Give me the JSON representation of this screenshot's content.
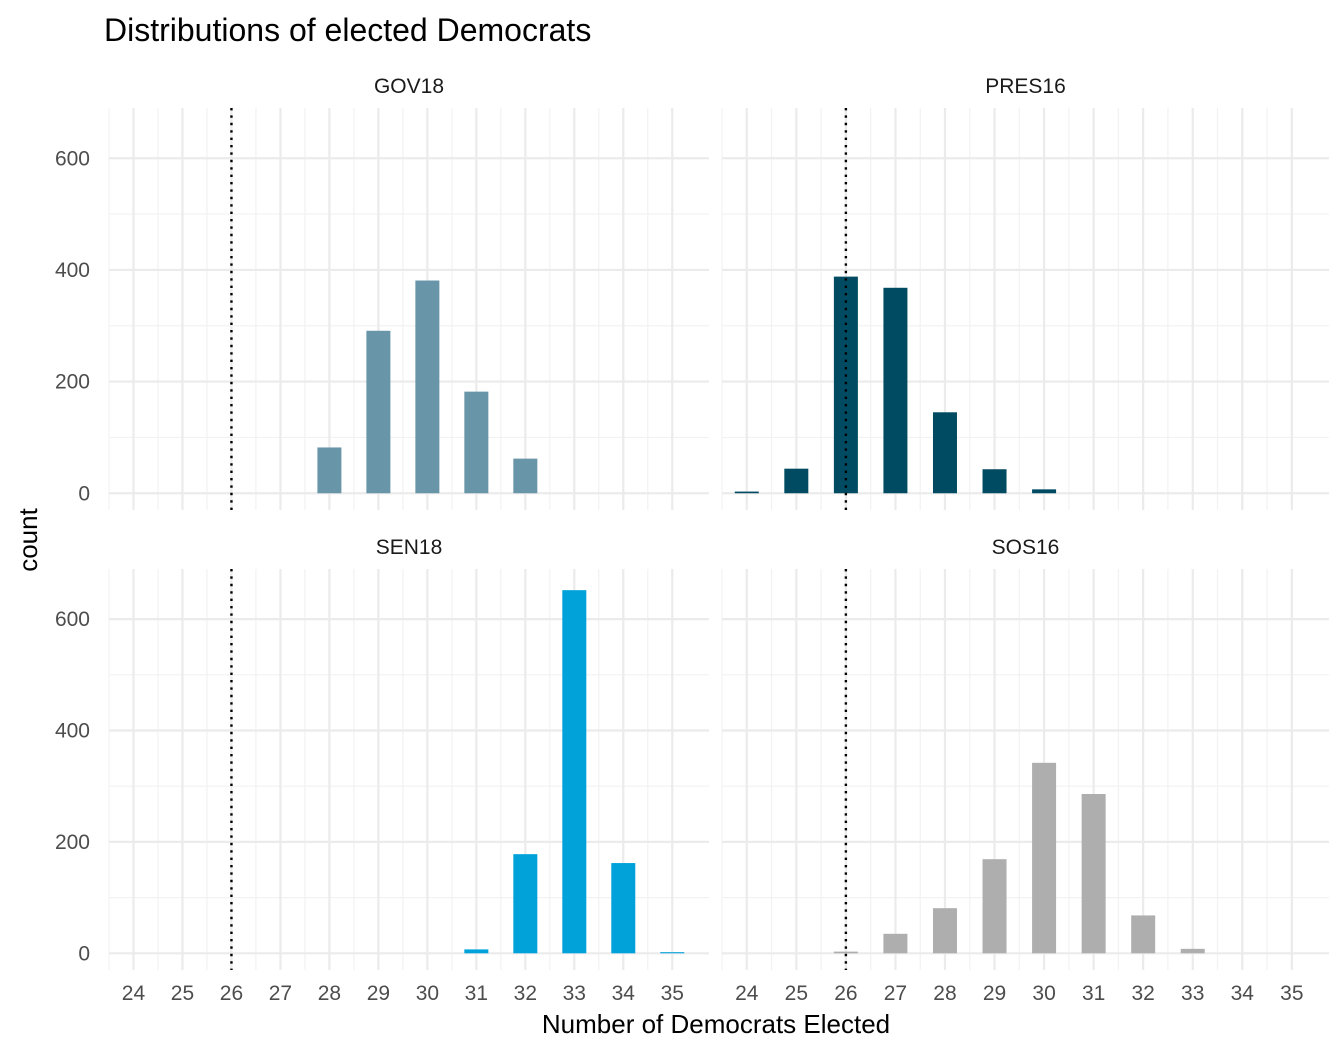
{
  "chart_data": {
    "type": "bar",
    "title": "Distributions of elected Democrats",
    "xlabel": "Number of Democrats Elected",
    "ylabel": "count",
    "x_ticks": [
      24,
      25,
      26,
      27,
      28,
      29,
      30,
      31,
      32,
      33,
      34,
      35
    ],
    "y_ticks": [
      0,
      200,
      400,
      600
    ],
    "xlim": [
      23.5,
      35.75
    ],
    "ylim": [
      -30,
      690
    ],
    "grid": true,
    "reference_line": 26,
    "panels": [
      {
        "name": "GOV18",
        "color": "#6895A8",
        "x": [
          28,
          29,
          30,
          31,
          32
        ],
        "values": [
          82,
          291,
          381,
          182,
          62
        ]
      },
      {
        "name": "PRES16",
        "color": "#004B62",
        "x": [
          24,
          25,
          26,
          27,
          28,
          29,
          30
        ],
        "values": [
          3,
          44,
          388,
          368,
          145,
          43,
          7
        ]
      },
      {
        "name": "SEN18",
        "color": "#00A2D9",
        "x": [
          31,
          32,
          33,
          34,
          35
        ],
        "values": [
          7,
          178,
          652,
          162,
          2
        ]
      },
      {
        "name": "SOS16",
        "color": "#AEAEAE",
        "x": [
          26,
          27,
          28,
          29,
          30,
          31,
          32,
          33
        ],
        "values": [
          3,
          35,
          81,
          169,
          342,
          286,
          68,
          8
        ]
      }
    ]
  }
}
